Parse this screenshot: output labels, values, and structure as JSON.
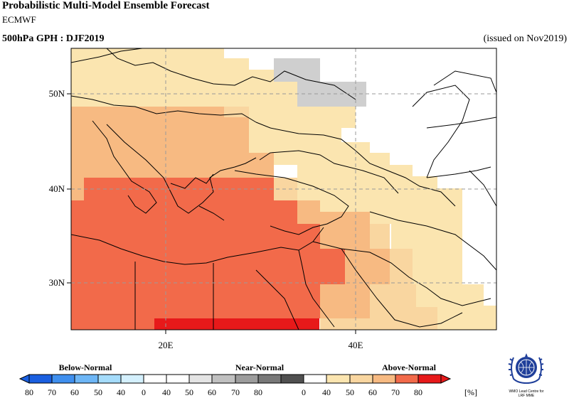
{
  "header": {
    "title": "Probabilistic Multi-Model Ensemble Forecast",
    "model": "ECMWF",
    "parameter": "500hPa GPH : DJF2019",
    "issued": "(issued on Nov2019)"
  },
  "map": {
    "lat_labels": [
      "50N",
      "40N",
      "30N"
    ],
    "lon_labels": [
      "20E",
      "40E"
    ],
    "colors": {
      "above_40_50": "#fbe5b0",
      "above_50_60": "#f9d6a0",
      "above_60_70": "#f7ba82",
      "above_70_80": "#f26a4a",
      "above_80": "#e7191a",
      "near_40_50": "#cfcfcf"
    }
  },
  "legend": {
    "categories": [
      "Below-Normal",
      "Near-Normal",
      "Above-Normal"
    ],
    "ticks": [
      "80",
      "70",
      "60",
      "50",
      "40",
      "0",
      "40",
      "50",
      "60",
      "70",
      "80",
      "0",
      "40",
      "50",
      "60",
      "70",
      "80"
    ],
    "unit": "[%]",
    "below_colors": [
      "#1a5fe0",
      "#3f8fee",
      "#6db6f6",
      "#a5dcfb",
      "#d4f0fd"
    ],
    "near_colors": [
      "#e4e4e4",
      "#c0c0c0",
      "#9c9c9c",
      "#787878",
      "#505050"
    ],
    "above_colors": [
      "#fbe5b0",
      "#f9d6a0",
      "#f7ba82",
      "#f26a4a",
      "#e7191a"
    ]
  },
  "logo": {
    "line1": "WMO Lead Centre for",
    "line2": "LRF MME"
  }
}
